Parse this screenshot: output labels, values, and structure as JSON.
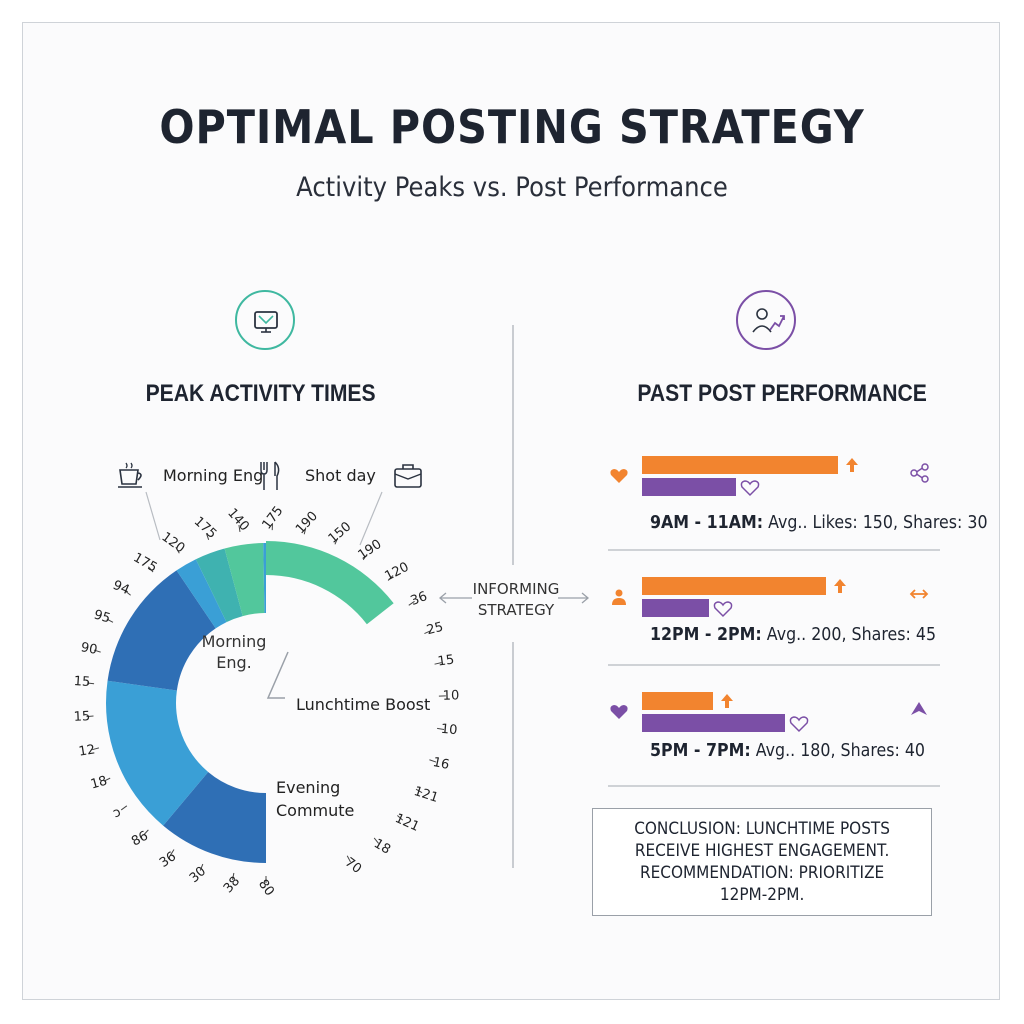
{
  "title": "OPTIMAL POSTING STRATEGY",
  "subtitle": "Activity Peaks vs. Post Performance",
  "left_section": {
    "title": "PEAK ACTIVITY TIMES",
    "top_labels": [
      "Morning Eng",
      "Shot day"
    ],
    "segment_labels": {
      "morning": "Morning\nEng.",
      "lunch": "Lunchtime Boost",
      "evening": "Evening\nCommute"
    }
  },
  "right_section": {
    "title": "PAST POST PERFORMANCE"
  },
  "middle_label": "INFORMING\nSTRATEGY",
  "conclusion": "CONCLUSION: LUNCHTIME POSTS\nRECEIVE HIGHEST ENGAGEMENT.\nRECOMMENDATION: PRIORITIZE\n12PM-2PM.",
  "colors": {
    "orange": "#f2842f",
    "purple": "#7b4fa6",
    "teal": "#3fb8a0",
    "blue": "#2f6fb5",
    "sky": "#3a9fd6"
  },
  "chart_data": [
    {
      "type": "radial",
      "title": "PEAK ACTIVITY TIMES",
      "segments": [
        {
          "label": "Evening Commute",
          "start_deg": 180,
          "end_deg": 220,
          "color": "#2f6fb5"
        },
        {
          "label": "",
          "start_deg": 220,
          "end_deg": 278,
          "color": "#3a9fd6"
        },
        {
          "label": "Morning Eng.",
          "start_deg": 278,
          "end_deg": 326,
          "color": "#2f6fb5"
        },
        {
          "label": "",
          "start_deg": 326,
          "end_deg": 334,
          "color": "#3a9fd6"
        },
        {
          "label": "",
          "start_deg": 334,
          "end_deg": 345,
          "color": "#3fb2b0"
        },
        {
          "label": "",
          "start_deg": 345,
          "end_deg": 359,
          "color": "#52c79c"
        },
        {
          "label": "",
          "start_deg": 359,
          "end_deg": 360,
          "color": "#3a9fd6"
        },
        {
          "label": "Lunchtime Boost",
          "start_deg": 0,
          "end_deg": 52,
          "color": "#52c79c"
        }
      ],
      "tick_labels": [
        "80",
        "38",
        "30",
        "36",
        "86",
        "ↄ",
        "18",
        "12",
        "15",
        "15",
        "90",
        "95",
        "94",
        "175",
        "120",
        "175",
        "140",
        "175",
        "190",
        "150",
        "190",
        "120",
        "36",
        "25",
        "15",
        "10",
        "10",
        "16",
        "121",
        "121",
        "18",
        "70"
      ]
    },
    {
      "type": "bar",
      "title": "PAST POST PERFORMANCE",
      "categories": [
        "9AM - 11AM",
        "12PM - 2PM",
        "5PM - 7PM"
      ],
      "series": [
        {
          "name": "Likes",
          "values": [
            150,
            200,
            180
          ]
        },
        {
          "name": "Shares",
          "values": [
            30,
            45,
            40
          ]
        }
      ],
      "labels": [
        {
          "time": "9AM - 11AM:",
          "rest": " Avg.. Likes: 150, Shares: 30"
        },
        {
          "time": "12PM - 2PM:",
          "rest": " Avg.. 200, Shares: 45"
        },
        {
          "time": "5PM - 7PM:",
          "rest": "  Avg.. 180, Shares: 40"
        }
      ],
      "bar_fractions": [
        {
          "orange": 0.85,
          "purple": 0.41
        },
        {
          "orange": 0.8,
          "purple": 0.29
        },
        {
          "orange": 0.31,
          "purple": 0.62
        }
      ]
    }
  ]
}
